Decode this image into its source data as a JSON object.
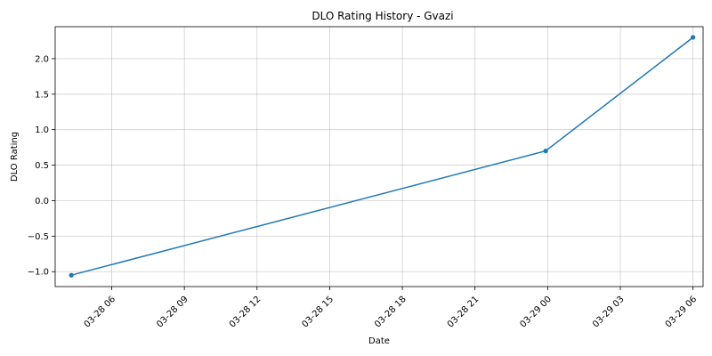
{
  "chart_data": {
    "type": "line",
    "title": "DLO Rating History - Gvazi",
    "xlabel": "Date",
    "ylabel": "DLO Rating",
    "x_ticks": [
      "2025-03-28 06:00",
      "2025-03-28 09:00",
      "2025-03-28 12:00",
      "2025-03-28 15:00",
      "2025-03-28 18:00",
      "2025-03-28 21:00",
      "2025-03-29 00:00",
      "2025-03-29 03:00",
      "2025-03-29 06:00"
    ],
    "x_tick_labels": [
      "03-28 06",
      "03-28 09",
      "03-28 12",
      "03-28 15",
      "03-28 18",
      "03-28 21",
      "03-29 00",
      "03-29 03",
      "03-29 06"
    ],
    "y_ticks": [
      -1.0,
      -0.5,
      0.0,
      0.5,
      1.0,
      1.5,
      2.0
    ],
    "y_tick_labels": [
      "−1.0",
      "−0.5",
      "0.0",
      "0.5",
      "1.0",
      "1.5",
      "2.0"
    ],
    "xlim": [
      "2025-03-28 03:40",
      "2025-03-29 06:25"
    ],
    "ylim": [
      -1.21,
      2.45
    ],
    "grid": true,
    "series": [
      {
        "color": "#1f77b4",
        "x": [
          "2025-03-28 04:20",
          "2025-03-28 23:55",
          "2025-03-29 06:00"
        ],
        "y": [
          -1.05,
          0.7,
          2.3
        ]
      }
    ]
  }
}
